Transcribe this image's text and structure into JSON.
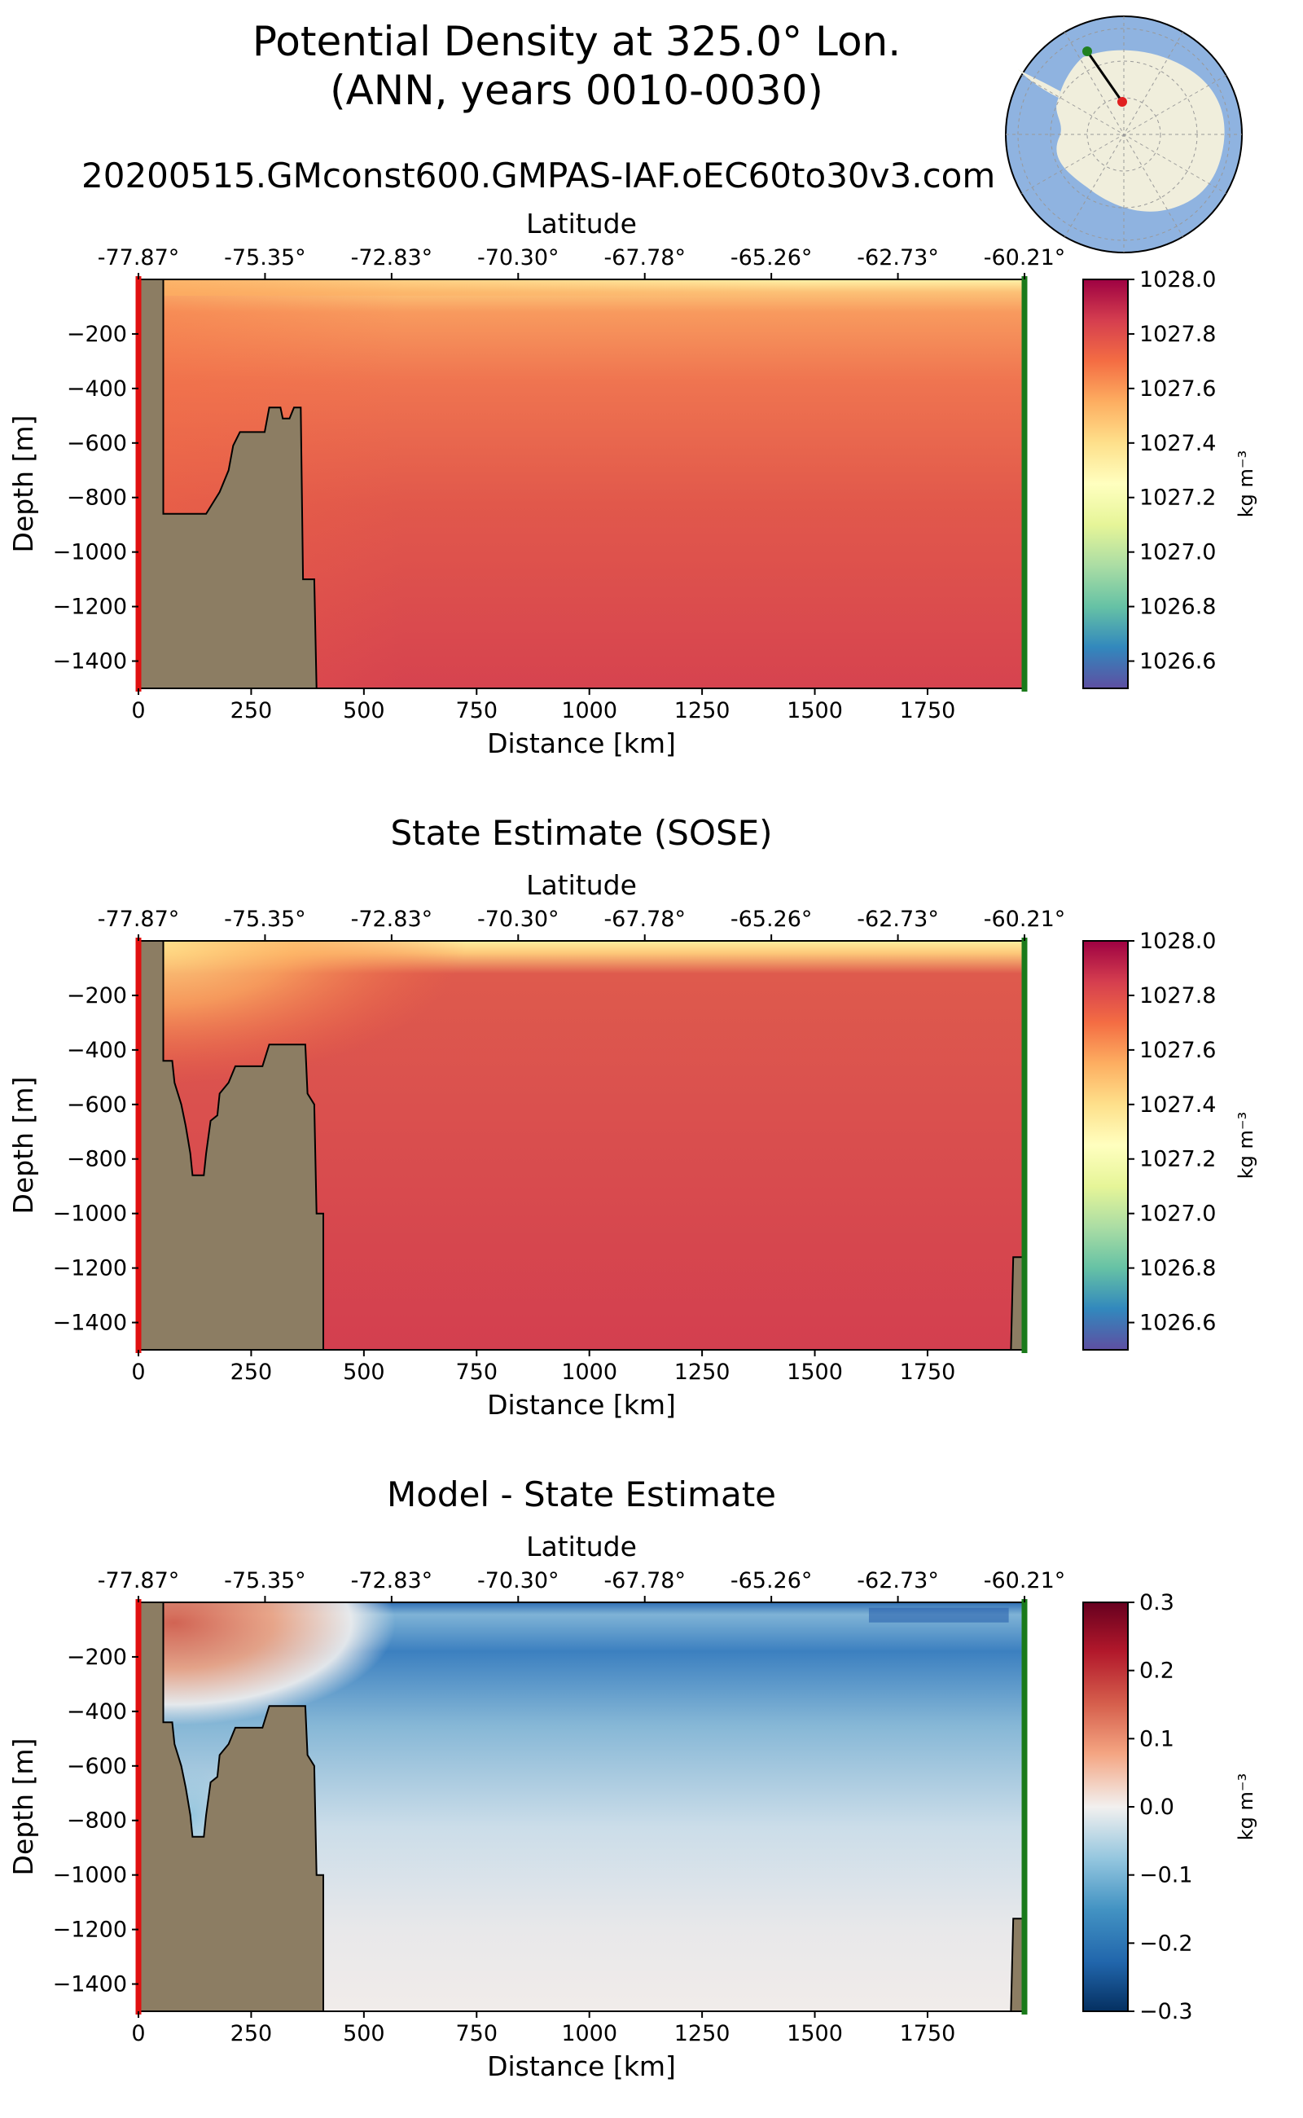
{
  "figure": {
    "title_line1": "Potential Density at 325.0° Lon.",
    "title_line2": "(ANN, years 0010-0030)",
    "run_name": "20200515.GMconst600.GMPAS-IAF.oEC60to30v3.com",
    "inset_map": {
      "description_icon": "antarctic-polar-map-icon",
      "ocean_color": "#8fb3e0",
      "land_color": "#f0eedc",
      "section_start_color": "#e02020",
      "section_end_color": "#208020"
    }
  },
  "panels": [
    {
      "id": "model",
      "title": "",
      "top_axis_label": "Latitude",
      "top_ticks": [
        "-77.87°",
        "-75.35°",
        "-72.83°",
        "-70.30°",
        "-67.78°",
        "-65.26°",
        "-62.73°",
        "-60.21°"
      ],
      "xlabel": "Distance [km]",
      "ylabel": "Depth [m]",
      "xticks": [
        "0",
        "250",
        "500",
        "750",
        "1000",
        "1250",
        "1500",
        "1750"
      ],
      "yticks": [
        "−200",
        "−400",
        "−600",
        "−800",
        "−1000",
        "−1200",
        "−1400"
      ],
      "colorbar_ticks": [
        "1028.0",
        "1027.8",
        "1027.6",
        "1027.4",
        "1027.2",
        "1027.0",
        "1026.8",
        "1026.6"
      ],
      "colorbar_label": "kg m⁻³",
      "colormap": "Spectral_r"
    },
    {
      "id": "sose",
      "title": "State Estimate (SOSE)",
      "top_axis_label": "Latitude",
      "top_ticks": [
        "-77.87°",
        "-75.35°",
        "-72.83°",
        "-70.30°",
        "-67.78°",
        "-65.26°",
        "-62.73°",
        "-60.21°"
      ],
      "xlabel": "Distance [km]",
      "ylabel": "Depth [m]",
      "xticks": [
        "0",
        "250",
        "500",
        "750",
        "1000",
        "1250",
        "1500",
        "1750"
      ],
      "yticks": [
        "−200",
        "−400",
        "−600",
        "−800",
        "−1000",
        "−1200",
        "−1400"
      ],
      "colorbar_ticks": [
        "1028.0",
        "1027.8",
        "1027.6",
        "1027.4",
        "1027.2",
        "1027.0",
        "1026.8",
        "1026.6"
      ],
      "colorbar_label": "kg m⁻³",
      "colormap": "Spectral_r"
    },
    {
      "id": "diff",
      "title": "Model - State Estimate",
      "top_axis_label": "Latitude",
      "top_ticks": [
        "-77.87°",
        "-75.35°",
        "-72.83°",
        "-70.30°",
        "-67.78°",
        "-65.26°",
        "-62.73°",
        "-60.21°"
      ],
      "xlabel": "Distance [km]",
      "ylabel": "Depth [m]",
      "xticks": [
        "0",
        "250",
        "500",
        "750",
        "1000",
        "1250",
        "1500",
        "1750"
      ],
      "yticks": [
        "−200",
        "−400",
        "−600",
        "−800",
        "−1000",
        "−1200",
        "−1400"
      ],
      "colorbar_ticks": [
        "0.3",
        "0.2",
        "0.1",
        "0.0",
        "−0.1",
        "−0.2",
        "−0.3"
      ],
      "colorbar_label": "kg m⁻³",
      "colormap": "RdBu_r"
    }
  ],
  "chart_data": [
    {
      "type": "heatmap",
      "title": "Potential Density at 325.0° Lon. (ANN, years 0010-0030)",
      "xlabel": "Distance [km]",
      "ylabel": "Depth [m]",
      "top_axis_label": "Latitude",
      "xlim": [
        0,
        1965
      ],
      "ylim": [
        -1500,
        0
      ],
      "clim": [
        1026.5,
        1028.0
      ],
      "units": "kg m^-3",
      "field_description": "potential density, model",
      "surface_value": 1027.3,
      "interior_value": 1027.82,
      "shelf_value": 1027.6,
      "bathymetry_km_m": [
        [
          0,
          0
        ],
        [
          55,
          0
        ],
        [
          55,
          -860
        ],
        [
          150,
          -860
        ],
        [
          165,
          -820
        ],
        [
          180,
          -780
        ],
        [
          200,
          -700
        ],
        [
          210,
          -610
        ],
        [
          225,
          -560
        ],
        [
          280,
          -560
        ],
        [
          290,
          -470
        ],
        [
          315,
          -470
        ],
        [
          320,
          -510
        ],
        [
          335,
          -510
        ],
        [
          345,
          -470
        ],
        [
          360,
          -470
        ],
        [
          365,
          -1100
        ],
        [
          390,
          -1100
        ],
        [
          395,
          -1500
        ]
      ],
      "right_boundary_km": 1965
    },
    {
      "type": "heatmap",
      "title": "State Estimate (SOSE)",
      "xlabel": "Distance [km]",
      "ylabel": "Depth [m]",
      "top_axis_label": "Latitude",
      "xlim": [
        0,
        1965
      ],
      "ylim": [
        -1500,
        0
      ],
      "clim": [
        1026.5,
        1028.0
      ],
      "units": "kg m^-3",
      "field_description": "potential density, SOSE",
      "surface_value": 1027.35,
      "interior_value": 1027.83,
      "shelf_value": 1027.45,
      "bathymetry_km_m": [
        [
          0,
          0
        ],
        [
          55,
          0
        ],
        [
          55,
          -440
        ],
        [
          75,
          -440
        ],
        [
          80,
          -520
        ],
        [
          95,
          -600
        ],
        [
          105,
          -680
        ],
        [
          115,
          -780
        ],
        [
          120,
          -860
        ],
        [
          145,
          -860
        ],
        [
          150,
          -780
        ],
        [
          160,
          -660
        ],
        [
          175,
          -640
        ],
        [
          180,
          -560
        ],
        [
          200,
          -520
        ],
        [
          215,
          -460
        ],
        [
          275,
          -460
        ],
        [
          290,
          -380
        ],
        [
          370,
          -380
        ],
        [
          375,
          -560
        ],
        [
          390,
          -600
        ],
        [
          395,
          -1000
        ],
        [
          410,
          -1000
        ],
        [
          410,
          -1500
        ]
      ],
      "right_bathymetry_km_m": [
        [
          1965,
          -1500
        ],
        [
          1965,
          -1160
        ],
        [
          1940,
          -1160
        ],
        [
          1935,
          -1500
        ]
      ]
    },
    {
      "type": "heatmap",
      "title": "Model - State Estimate",
      "xlabel": "Distance [km]",
      "ylabel": "Depth [m]",
      "top_axis_label": "Latitude",
      "xlim": [
        0,
        1965
      ],
      "ylim": [
        -1500,
        0
      ],
      "clim": [
        -0.3,
        0.3
      ],
      "units": "kg m^-3",
      "field_description": "density difference, model minus SOSE",
      "shelf_upper_value": 0.12,
      "shelf_lower_value": -0.08,
      "subsurface_min_value": -0.2,
      "deep_value": -0.02,
      "bathymetry_km_m": [
        [
          0,
          0
        ],
        [
          55,
          0
        ],
        [
          55,
          -440
        ],
        [
          75,
          -440
        ],
        [
          80,
          -520
        ],
        [
          95,
          -600
        ],
        [
          105,
          -680
        ],
        [
          115,
          -780
        ],
        [
          120,
          -860
        ],
        [
          145,
          -860
        ],
        [
          150,
          -780
        ],
        [
          160,
          -660
        ],
        [
          175,
          -640
        ],
        [
          180,
          -560
        ],
        [
          200,
          -520
        ],
        [
          215,
          -460
        ],
        [
          275,
          -460
        ],
        [
          290,
          -380
        ],
        [
          370,
          -380
        ],
        [
          375,
          -560
        ],
        [
          390,
          -600
        ],
        [
          395,
          -1000
        ],
        [
          410,
          -1000
        ],
        [
          410,
          -1500
        ]
      ],
      "right_bathymetry_km_m": [
        [
          1965,
          -1500
        ],
        [
          1965,
          -1160
        ],
        [
          1940,
          -1160
        ],
        [
          1935,
          -1500
        ]
      ]
    }
  ]
}
